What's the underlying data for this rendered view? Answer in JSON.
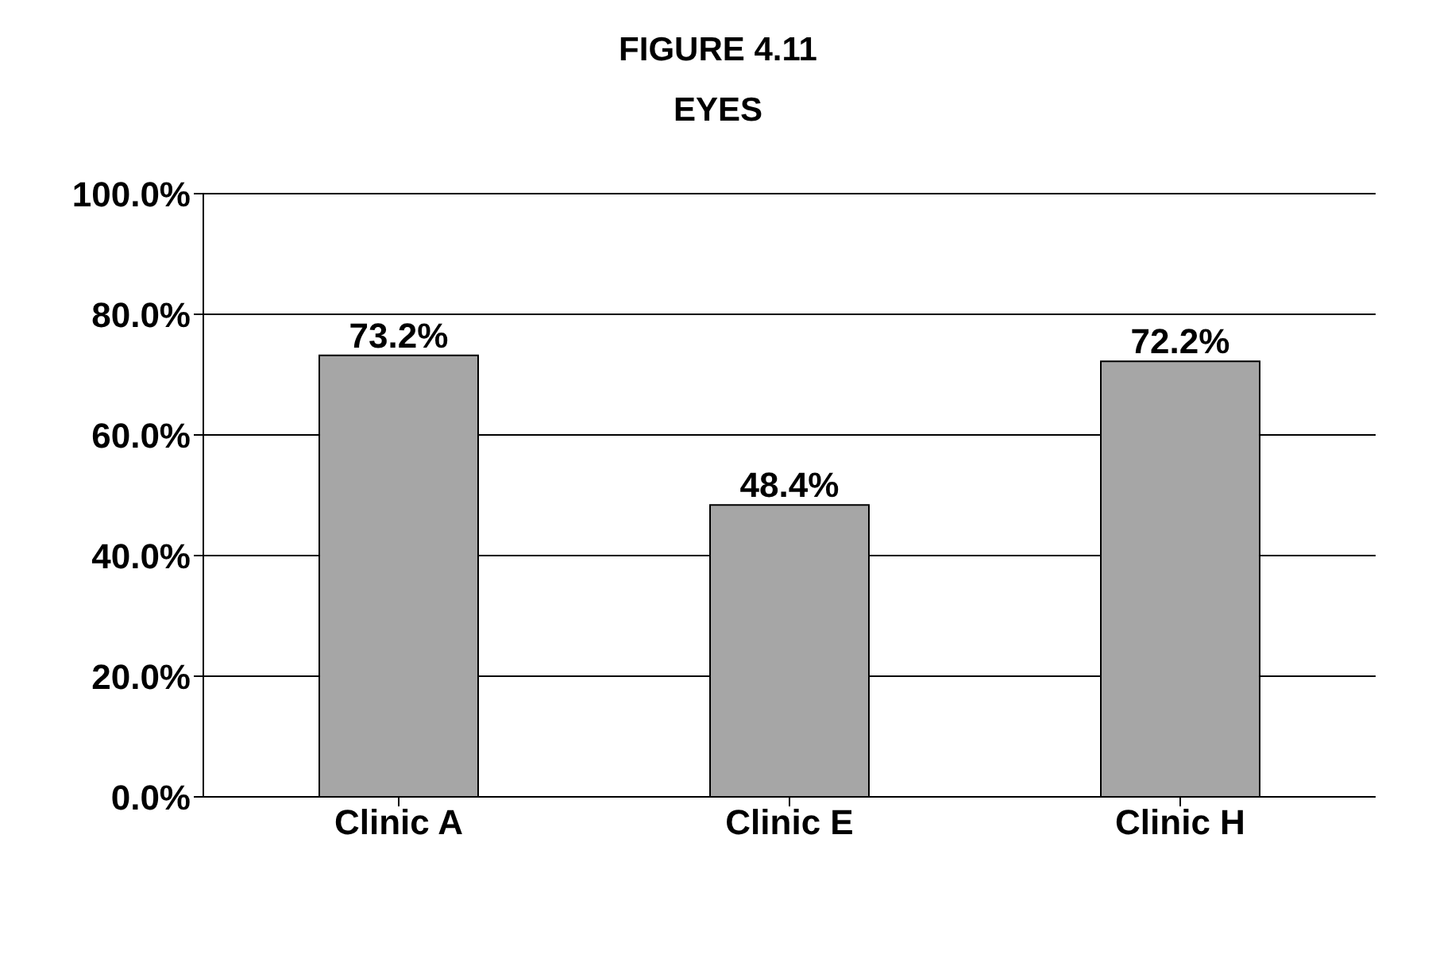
{
  "chart_data": {
    "type": "bar",
    "title": "FIGURE 4.11",
    "subtitle": "EYES",
    "categories": [
      "Clinic A",
      "Clinic E",
      "Clinic H"
    ],
    "values": [
      73.2,
      48.4,
      72.2
    ],
    "value_labels": [
      "73.2%",
      "48.4%",
      "72.2%"
    ],
    "color": "#a6a6a6",
    "ylim": [
      0,
      100
    ],
    "yticks": [
      {
        "value": 0,
        "label": "0.0%"
      },
      {
        "value": 20,
        "label": "20.0%"
      },
      {
        "value": 40,
        "label": "40.0%"
      },
      {
        "value": 60,
        "label": "60.0%"
      },
      {
        "value": 80,
        "label": "80.0%"
      },
      {
        "value": 100,
        "label": "100.0%"
      }
    ],
    "grid": "y"
  }
}
